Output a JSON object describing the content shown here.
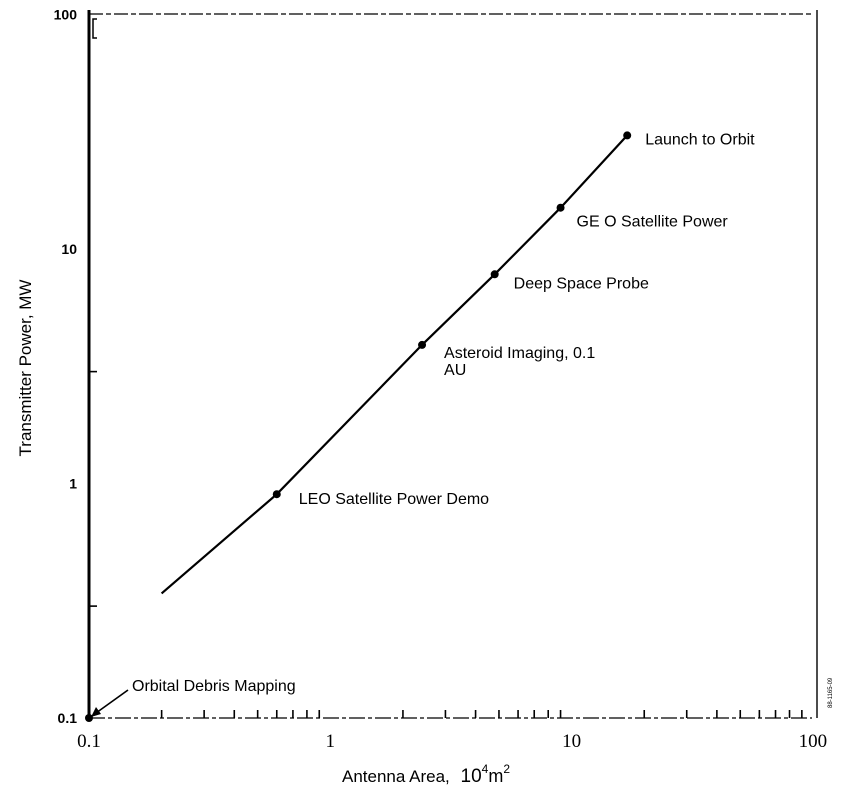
{
  "chart_data": {
    "type": "line",
    "title": "",
    "xlabel": "Antenna  Area,",
    "xlabel_unit_base": "10",
    "xlabel_unit_exp": "4",
    "xlabel_unit_m": "m",
    "xlabel_unit_m_exp": "2",
    "ylabel": "Transmitter Power, MW",
    "x_scale": "log",
    "y_scale": "log",
    "xlim": [
      0.1,
      100
    ],
    "ylim": [
      0.1,
      100
    ],
    "x_ticks": [
      "0.1",
      "1",
      "10",
      "100"
    ],
    "y_ticks": [
      "0.1",
      "1",
      "10",
      "100"
    ],
    "grid": false,
    "series": [
      {
        "x": [
          0.2,
          0.6,
          2.4,
          4.8,
          9.0,
          17.0
        ],
        "y": [
          0.34,
          0.9,
          3.9,
          7.8,
          15.0,
          30.5
        ]
      }
    ],
    "points": [
      {
        "x": 0.1,
        "y": 0.1,
        "label": "Orbital Debris Mapping"
      },
      {
        "x": 0.6,
        "y": 0.9,
        "label": "LEO Satellite Power Demo"
      },
      {
        "x": 2.4,
        "y": 3.9,
        "label": "Asteroid Imaging, 0.1",
        "label2": "AU"
      },
      {
        "x": 4.8,
        "y": 7.8,
        "label": "Deep Space Probe"
      },
      {
        "x": 9.0,
        "y": 15.0,
        "label": "GE O Satellite Power"
      },
      {
        "x": 17.0,
        "y": 30.5,
        "label": "Launch to Orbit"
      }
    ],
    "id_code": "88-1165-09"
  }
}
